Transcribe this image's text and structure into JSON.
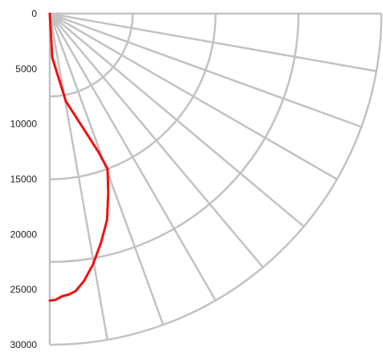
{
  "chart_data": {
    "type": "line",
    "coordinate_system": "polar-quadrant",
    "title": "",
    "xlabel": "",
    "ylabel": "",
    "radial_axis": {
      "range": [
        0,
        30000
      ],
      "ticks": [
        0,
        5000,
        10000,
        15000,
        20000,
        25000,
        30000
      ],
      "tick_labels": [
        "0",
        "5000",
        "10000",
        "15000",
        "20000",
        "25000",
        "30000"
      ]
    },
    "grid": {
      "visible": true,
      "rings": [
        7500,
        15000,
        22500,
        30000
      ],
      "spoke_angles_deg": [
        0,
        10,
        20,
        30,
        40,
        50,
        60,
        70,
        80,
        90
      ],
      "color": "#c2c2c2"
    },
    "series": [
      {
        "color": "#ee1111",
        "points": [
          {
            "distance": 0,
            "angle": 90
          },
          {
            "distance": 3985,
            "angle": 86.8
          },
          {
            "distance": 8075,
            "angle": 79.6
          },
          {
            "distance": 13220,
            "angle": 70.7
          },
          {
            "distance": 15005,
            "angle": 69.6
          },
          {
            "distance": 17110,
            "angle": 72.0
          },
          {
            "distance": 19390,
            "angle": 74.5
          },
          {
            "distance": 21250,
            "angle": 77.4
          },
          {
            "distance": 23030,
            "angle": 80.2
          },
          {
            "distance": 24410,
            "angle": 82.7
          },
          {
            "distance": 25250,
            "angle": 84.7
          },
          {
            "distance": 25500,
            "angle": 86.1
          },
          {
            "distance": 25630,
            "angle": 87.5
          },
          {
            "distance": 25940,
            "angle": 88.9
          },
          {
            "distance": 26000,
            "angle": 90
          }
        ]
      }
    ]
  }
}
